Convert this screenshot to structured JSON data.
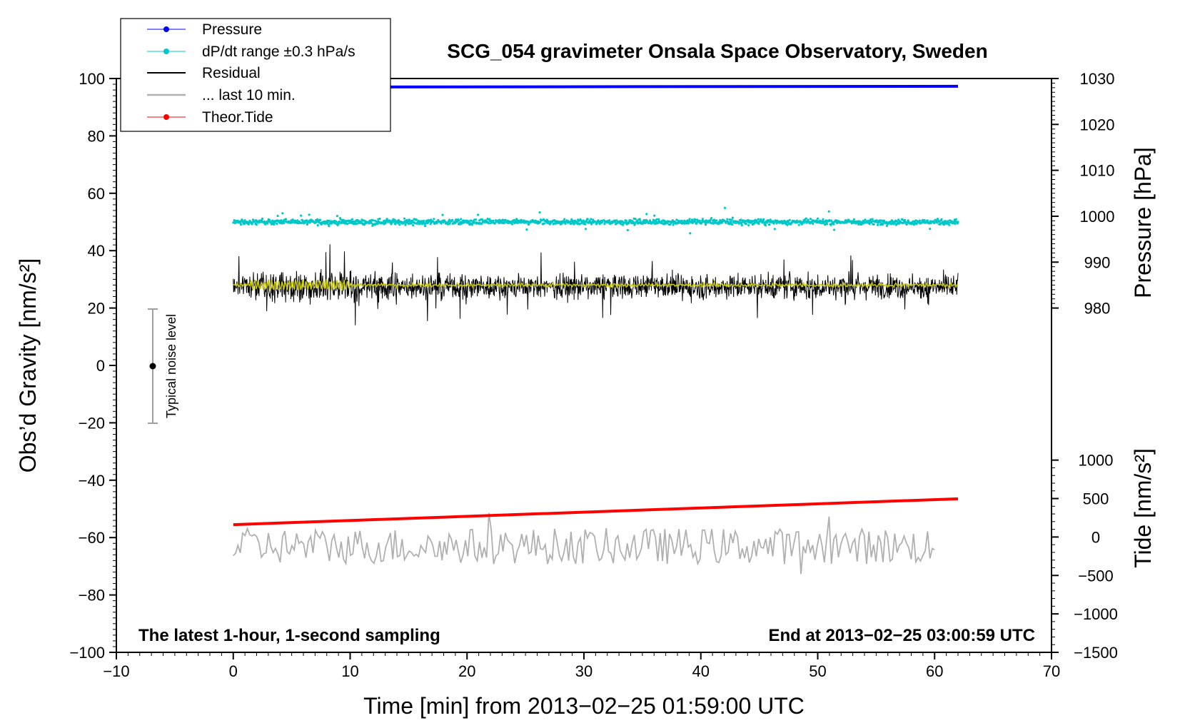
{
  "chart_data": {
    "type": "line",
    "title": "SCG_054 gravimeter Onsala Space Observatory, Sweden",
    "xlabel": "Time [min] from 2013−02−25 01:59:00 UTC",
    "ylabel_left": "Obs’d Gravity [nm/s²]",
    "ylabel_right_top": "Pressure [hPa]",
    "ylabel_right_bottom": "Tide [nm/s²]",
    "xlim": [
      -10,
      70
    ],
    "ylim_left": [
      -100,
      100
    ],
    "x_ticks": [
      "−10",
      "0",
      "10",
      "20",
      "30",
      "40",
      "50",
      "60",
      "70"
    ],
    "x_tick_values": [
      -10,
      0,
      10,
      20,
      30,
      40,
      50,
      60,
      70
    ],
    "y_left_ticks": [
      "100",
      "80",
      "60",
      "40",
      "20",
      "0",
      "−20",
      "−40",
      "−60",
      "−80",
      "−100"
    ],
    "y_left_tick_values": [
      100,
      80,
      60,
      40,
      20,
      0,
      -20,
      -40,
      -60,
      -80,
      -100
    ],
    "pressure_axis": {
      "ticks": [
        "1030",
        "1020",
        "1010",
        "1000",
        "990",
        "980"
      ],
      "tick_values": [
        1030,
        1020,
        1010,
        1000,
        990,
        980
      ],
      "scale_hpa": [
        980,
        1030
      ],
      "equivalent_gravity": [
        20,
        100
      ]
    },
    "tide_axis": {
      "ticks": [
        "1000",
        "500",
        "0",
        "−500",
        "−1000",
        "−1500"
      ],
      "tick_values": [
        1000,
        500,
        0,
        -500,
        -1000,
        -1500
      ],
      "scale_nms2": [
        -1500,
        1000
      ],
      "equivalent_gravity": [
        -100,
        -33
      ]
    },
    "legend": [
      {
        "label": "Pressure",
        "color": "#0000ff",
        "marker": true
      },
      {
        "label": "dP/dt range ±0.3 hPa/s",
        "color": "#00c8c8",
        "marker": true
      },
      {
        "label": "Residual",
        "color": "#000000",
        "marker": false
      },
      {
        "label": "... last 10 min.",
        "color": "#b0b0b0",
        "marker": false
      },
      {
        "label": "Theor.Tide",
        "color": "#ff0000",
        "marker": true
      }
    ],
    "legend_position": "top-left",
    "series": [
      {
        "name": "Pressure",
        "color": "#0000ff",
        "x": [
          0,
          62
        ],
        "y": [
          97,
          97.3
        ]
      },
      {
        "name": "dP/dt range ±0.3 hPa/s",
        "color": "#00c8c8",
        "x_range": [
          0,
          62
        ],
        "center": 50,
        "spread": 5
      },
      {
        "name": "Residual",
        "color": "#000000",
        "x_range": [
          0,
          62
        ],
        "center": 27.5,
        "spread": 12
      },
      {
        "name": "Residual (smoothed)",
        "color": "#c8c800",
        "x_range": [
          0,
          62
        ],
        "center": 28
      },
      {
        "name": "... last 10 min.",
        "color": "#b0b0b0",
        "x_range": [
          0,
          60
        ],
        "center": -63,
        "spread": 7
      },
      {
        "name": "Theor.Tide",
        "color": "#ff0000",
        "x": [
          0,
          62
        ],
        "y": [
          -55.5,
          -46.5
        ]
      }
    ],
    "noise_bar": {
      "label": "Typical noise level",
      "x": -7,
      "center": 0,
      "low": -20,
      "high": 20
    },
    "footer_left": "The latest 1-hour, 1-second sampling",
    "footer_right": "End at 2013−02−25 03:00:59 UTC"
  }
}
